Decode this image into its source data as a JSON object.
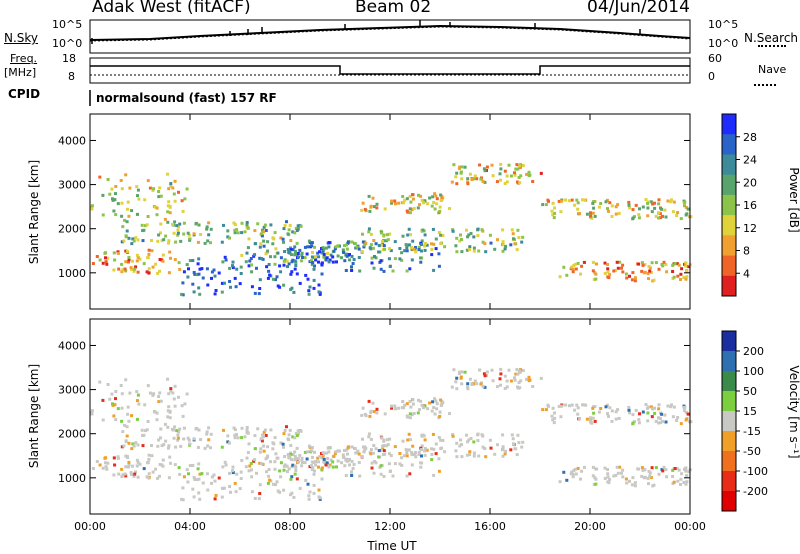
{
  "header": {
    "radar": "Adak West (fitACF)",
    "beam": "Beam 02",
    "date": "04/Jun/2014"
  },
  "top_panels": {
    "nsky_label": "N.Sky",
    "nsearch_label": "N.Search",
    "noise_ticks": [
      "10^5",
      "10^0"
    ],
    "freq_label_1": "Freq.",
    "freq_label_2": "[MHz]",
    "freq_ticks": [
      "18",
      "8"
    ],
    "nave_label": "Nave",
    "nave_ticks": [
      "60",
      "0"
    ],
    "cpid_label": "CPID",
    "cpid_text": "normalsound (fast) 157 RF"
  },
  "chart_data": [
    {
      "type": "heatmap",
      "title": "",
      "ylabel": "Slant Range [km]",
      "xlabel": "",
      "ylim": [
        180,
        4600
      ],
      "yticks": [
        1000,
        2000,
        3000,
        4000
      ],
      "colorbar": {
        "label": "Power [dB]",
        "ticks": [
          "4",
          "8",
          "12",
          "16",
          "20",
          "24",
          "28"
        ],
        "colors": [
          "#1f2cff",
          "#2a64c8",
          "#3c8a9a",
          "#59a36c",
          "#8cc34a",
          "#e0d23a",
          "#f0a030",
          "#f06428",
          "#e02020"
        ]
      }
    },
    {
      "type": "heatmap",
      "title": "",
      "ylabel": "Slant Range [km]",
      "xlabel": "Time UT",
      "ylim": [
        180,
        4600
      ],
      "yticks": [
        1000,
        2000,
        3000,
        4000
      ],
      "xticks": [
        "00:00",
        "04:00",
        "08:00",
        "12:00",
        "16:00",
        "20:00",
        "00:00"
      ],
      "colorbar": {
        "label": "Velocity [m s⁻¹]",
        "ticks": [
          "200",
          "100",
          "50",
          "15",
          "-15",
          "-50",
          "-100",
          "-200"
        ],
        "colors": [
          "#1a2ea0",
          "#2d6fb0",
          "#3a8a4a",
          "#7cd040",
          "#c8c8c4",
          "#f0a028",
          "#f07020",
          "#e82c18",
          "#e00000"
        ]
      }
    }
  ]
}
